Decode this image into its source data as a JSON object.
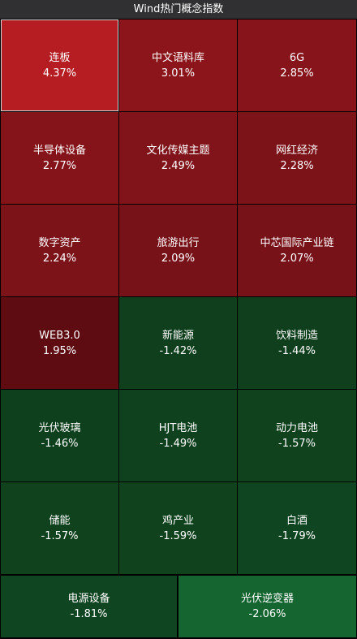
{
  "header": {
    "title": "Wind热门概念指数"
  },
  "tiles": [
    {
      "name": "连板",
      "pct": "4.37%",
      "color": "#b51d23"
    },
    {
      "name": "中文语料库",
      "pct": "3.01%",
      "color": "#8c151b"
    },
    {
      "name": "6G",
      "pct": "2.85%",
      "color": "#87141a"
    },
    {
      "name": "半导体设备",
      "pct": "2.77%",
      "color": "#85141a"
    },
    {
      "name": "文化传媒主题",
      "pct": "2.49%",
      "color": "#80141a"
    },
    {
      "name": "网红经济",
      "pct": "2.28%",
      "color": "#7c1319"
    },
    {
      "name": "数字资产",
      "pct": "2.24%",
      "color": "#7b1319"
    },
    {
      "name": "旅游出行",
      "pct": "2.09%",
      "color": "#781219"
    },
    {
      "name": "中芯国际产业链",
      "pct": "2.07%",
      "color": "#781219"
    },
    {
      "name": "WEB3.0",
      "pct": "1.95%",
      "color": "#5e0c12"
    },
    {
      "name": "新能源",
      "pct": "-1.42%",
      "color": "#0f3f1d"
    },
    {
      "name": "饮料制造",
      "pct": "-1.44%",
      "color": "#0f3f1d"
    },
    {
      "name": "光伏玻璃",
      "pct": "-1.46%",
      "color": "#0f401d"
    },
    {
      "name": "HJT电池",
      "pct": "-1.49%",
      "color": "#10411e"
    },
    {
      "name": "动力电池",
      "pct": "-1.57%",
      "color": "#10421e"
    },
    {
      "name": "储能",
      "pct": "-1.57%",
      "color": "#10421e"
    },
    {
      "name": "鸡产业",
      "pct": "-1.59%",
      "color": "#10421e"
    },
    {
      "name": "白酒",
      "pct": "-1.79%",
      "color": "#104521"
    },
    {
      "name": "电源设备",
      "pct": "-1.81%",
      "color": "#104521"
    },
    {
      "name": "光伏逆变器",
      "pct": "-2.06%",
      "color": "#156530"
    }
  ]
}
